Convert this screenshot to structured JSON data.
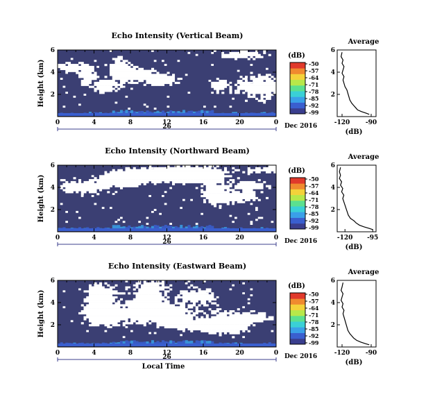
{
  "colors": {
    "background_echo": "#3b3f73",
    "no_data": "#ffffff",
    "colorbar": [
      "#3a3e8e",
      "#3a5fcf",
      "#3aa0e8",
      "#3ad0d6",
      "#5be08f",
      "#b7e84a",
      "#f4d23a",
      "#f08a2f",
      "#e0392b"
    ],
    "profile_line": "#000000",
    "time_axis_line": "#3b3f8e"
  },
  "figure": {
    "xlabel": "Local Time",
    "date_label": "Dec 2016",
    "day_label": "26",
    "colorbar_unit": "(dB)",
    "profile_title": "Average",
    "profile_xlabel": "(dB)"
  },
  "chart_data": [
    {
      "type": "heatmap",
      "title": "Echo Intensity (Vertical Beam)",
      "ylabel": "Height (km)",
      "xlabel": "",
      "xlim": [
        0,
        24
      ],
      "ylim": [
        0,
        6
      ],
      "x_ticks": [
        "0",
        "4",
        "8",
        "12",
        "16",
        "20",
        "0"
      ],
      "y_ticks": [
        "2",
        "4",
        "6"
      ],
      "colorbar_ticks": [
        "-50",
        "-57",
        "-64",
        "-71",
        "-78",
        "-85",
        "-92",
        "-99"
      ],
      "clim": [
        -99,
        -50
      ],
      "description_values": {
        "dominant_value_db": -99,
        "surface_enhancement_db": -85
      }
    },
    {
      "type": "line",
      "title": "Average",
      "xlabel": "(dB)",
      "x_ticks": [
        "-120",
        "-90"
      ],
      "xlim": [
        -125,
        -85
      ],
      "ylim": [
        0,
        6
      ],
      "y_ticks": [
        "2",
        "4",
        "6"
      ],
      "series": [
        {
          "x": [
            -92,
            -95,
            -100,
            -104,
            -106,
            -108,
            -110,
            -112,
            -113,
            -114,
            -115,
            -117,
            -118,
            -119,
            -118,
            -120,
            -119,
            -118,
            -120,
            -119,
            -121,
            -120
          ],
          "y": [
            0.2,
            0.3,
            0.45,
            0.6,
            0.8,
            1.0,
            1.2,
            1.5,
            1.8,
            2.1,
            2.4,
            2.7,
            3.0,
            3.3,
            3.6,
            3.9,
            4.2,
            4.5,
            4.8,
            5.1,
            5.4,
            5.8
          ]
        }
      ]
    },
    {
      "type": "heatmap",
      "title": "Echo Intensity (Northward Beam)",
      "ylabel": "Height (km)",
      "xlabel": "",
      "xlim": [
        0,
        24
      ],
      "ylim": [
        0,
        6
      ],
      "x_ticks": [
        "0",
        "4",
        "8",
        "12",
        "16",
        "20",
        "0"
      ],
      "y_ticks": [
        "2",
        "4",
        "6"
      ],
      "colorbar_ticks": [
        "-50",
        "-57",
        "-64",
        "-71",
        "-78",
        "-85",
        "-92",
        "-99"
      ],
      "clim": [
        -99,
        -50
      ]
    },
    {
      "type": "line",
      "title": "Average",
      "xlabel": "(dB)",
      "x_ticks": [
        "-120",
        "-95"
      ],
      "xlim": [
        -127,
        -92
      ],
      "ylim": [
        0,
        6
      ],
      "y_ticks": [
        "2",
        "4",
        "6"
      ],
      "series": [
        {
          "x": [
            -95,
            -98,
            -103,
            -107,
            -110,
            -112,
            -115,
            -117,
            -118,
            -119,
            -120,
            -121,
            -122,
            -121,
            -123,
            -122,
            -124,
            -123,
            -125,
            -124,
            -125,
            -124
          ],
          "y": [
            0.2,
            0.3,
            0.45,
            0.6,
            0.8,
            1.0,
            1.2,
            1.5,
            1.8,
            2.1,
            2.4,
            2.7,
            3.0,
            3.3,
            3.6,
            3.9,
            4.2,
            4.5,
            4.8,
            5.1,
            5.4,
            5.8
          ]
        }
      ]
    },
    {
      "type": "heatmap",
      "title": "Echo Intensity (Eastward Beam)",
      "ylabel": "Height (km)",
      "xlabel": "Local Time",
      "xlim": [
        0,
        24
      ],
      "ylim": [
        0,
        6
      ],
      "x_ticks": [
        "0",
        "4",
        "8",
        "12",
        "16",
        "20",
        "0"
      ],
      "y_ticks": [
        "2",
        "4",
        "6"
      ],
      "colorbar_ticks": [
        "-50",
        "-57",
        "-64",
        "-71",
        "-78",
        "-85",
        "-92",
        "-99"
      ],
      "clim": [
        -99,
        -50
      ]
    },
    {
      "type": "line",
      "title": "Average",
      "xlabel": "(dB)",
      "x_ticks": [
        "-120",
        "-90"
      ],
      "xlim": [
        -125,
        -85
      ],
      "ylim": [
        0,
        6
      ],
      "y_ticks": [
        "2",
        "4",
        "6"
      ],
      "series": [
        {
          "x": [
            -92,
            -96,
            -101,
            -105,
            -108,
            -110,
            -112,
            -114,
            -115,
            -116,
            -117,
            -118,
            -119,
            -118,
            -120,
            -119,
            -121,
            -120,
            -119,
            -121,
            -120,
            -119
          ],
          "y": [
            0.2,
            0.3,
            0.45,
            0.6,
            0.8,
            1.0,
            1.2,
            1.5,
            1.8,
            2.1,
            2.4,
            2.7,
            3.0,
            3.3,
            3.6,
            3.9,
            4.2,
            4.5,
            4.8,
            5.1,
            5.4,
            5.8
          ]
        }
      ]
    }
  ]
}
